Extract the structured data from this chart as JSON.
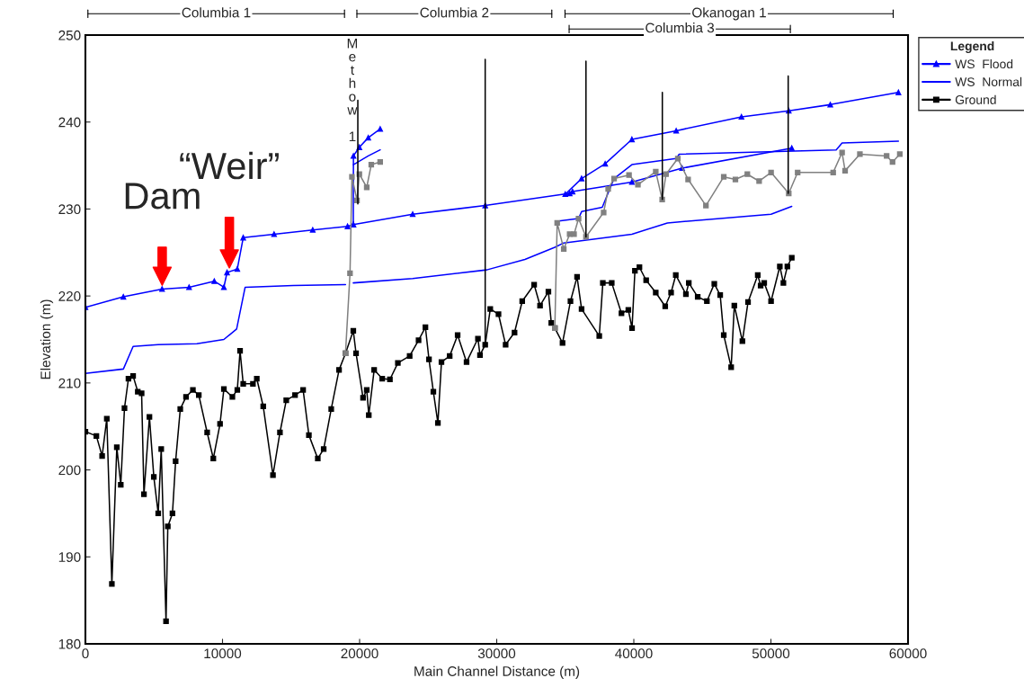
{
  "chart_data": {
    "type": "line",
    "xlabel": "Main Channel Distance (m)",
    "ylabel": "Elevation (m)",
    "legend_title": "Legend",
    "legend": "right",
    "grid": false,
    "xlim": [
      0,
      60000
    ],
    "xticks": [
      0,
      10000,
      20000,
      30000,
      40000,
      50000,
      60000
    ],
    "ylim": [
      180,
      250
    ],
    "yticks": [
      180,
      190,
      200,
      210,
      220,
      230,
      240,
      250
    ],
    "series": [
      {
        "name": "WS  Flood",
        "color": "#0000ff",
        "marker": "triangle",
        "x": [
          0,
          2770,
          5590,
          7560,
          9400,
          10100,
          10330,
          11080,
          11510,
          13760,
          16580,
          19120,
          19540,
          23870,
          29160,
          35320,
          35530,
          39860,
          43520,
          51520,
          null,
          19540,
          19550,
          19980,
          20630,
          21500,
          null,
          35000,
          36190,
          37910,
          39860,
          43090,
          47850,
          51300,
          54330,
          59300
        ],
        "values": [
          218.7,
          219.9,
          220.8,
          221.0,
          221.7,
          221.0,
          222.7,
          223.1,
          226.7,
          227.1,
          227.6,
          228.0,
          228.2,
          229.4,
          230.4,
          231.8,
          232.0,
          233.1,
          234.7,
          237.0,
          null,
          228.2,
          236.1,
          237.1,
          238.2,
          239.2,
          null,
          231.7,
          233.5,
          235.2,
          238.0,
          239.0,
          240.6,
          241.3,
          242.0,
          243.4
        ]
      },
      {
        "name": "WS  Normal",
        "color": "#0000ff",
        "marker": "none",
        "x": [
          0,
          2770,
          3480,
          5310,
          8130,
          10100,
          11030,
          11650,
          15170,
          18970,
          null,
          19540,
          23870,
          29270,
          32060,
          34240,
          34890,
          39860,
          42450,
          50010,
          51520,
          null,
          19550,
          20630,
          21500,
          null,
          34410,
          35970,
          36190,
          37700,
          38560,
          39860,
          43090,
          43310,
          54760,
          55190,
          59300
        ],
        "values": [
          211.1,
          211.6,
          214.2,
          214.4,
          214.5,
          215.0,
          216.2,
          221.0,
          221.2,
          221.3,
          null,
          221.5,
          222.0,
          223.0,
          224.2,
          225.6,
          226.1,
          227.1,
          228.4,
          229.4,
          230.3,
          null,
          235.1,
          236.1,
          236.8,
          null,
          228.6,
          228.9,
          229.7,
          230.2,
          233.5,
          235.1,
          235.8,
          236.3,
          236.8,
          237.6,
          237.8
        ]
      },
      {
        "name": "Ground",
        "color": "#000000",
        "marker": "square",
        "x": [
          0,
          800,
          1220,
          1560,
          1930,
          2290,
          2580,
          2850,
          3140,
          3480,
          3820,
          4100,
          4270,
          4670,
          4990,
          5310,
          5530,
          5880,
          6010,
          6350,
          6580,
          6920,
          7340,
          7840,
          8270,
          8880,
          9330,
          9820,
          10100,
          10720,
          11080,
          11280,
          11510,
          12220,
          12500,
          12970,
          13680,
          14190,
          14650,
          15290,
          15880,
          16300,
          16950,
          17380,
          17930,
          18500,
          18970,
          19540,
          19740,
          20250,
          20520,
          20670,
          21060,
          21650,
          22210,
          22790,
          23650,
          24300,
          24800,
          25060,
          25380,
          25710,
          25970,
          26570,
          27150,
          27800,
          28630,
          28780,
          29160,
          29530,
          30130,
          30650,
          31300,
          31860,
          32730,
          33160,
          33770,
          33980,
          34240,
          34800,
          35380,
          35860,
          36190,
          37480,
          37740,
          38390,
          39100,
          39600,
          39870,
          40080,
          40410,
          40900,
          41600,
          42290,
          42720,
          43060,
          43800,
          44010,
          44660,
          45330,
          45870,
          46300,
          46560,
          47100,
          47330,
          47920,
          48330,
          49040,
          49250,
          49510,
          50010,
          50650,
          50910,
          51200,
          51520
        ],
        "values": [
          204.4,
          203.9,
          201.6,
          205.9,
          186.9,
          202.6,
          198.3,
          207.1,
          210.5,
          210.8,
          209.0,
          208.8,
          197.2,
          206.1,
          199.2,
          195.0,
          202.4,
          182.6,
          193.5,
          195.0,
          201.0,
          207.0,
          208.4,
          209.2,
          208.6,
          204.3,
          201.3,
          205.3,
          209.3,
          208.4,
          209.2,
          213.7,
          209.9,
          209.9,
          210.5,
          207.3,
          199.4,
          204.3,
          208.0,
          208.6,
          209.2,
          204.0,
          201.3,
          202.4,
          207.0,
          211.5,
          213.4,
          216.0,
          213.4,
          208.3,
          209.2,
          206.3,
          211.5,
          210.5,
          210.4,
          212.3,
          213.1,
          214.9,
          216.4,
          212.7,
          209.0,
          205.4,
          212.4,
          213.1,
          215.5,
          212.4,
          215.1,
          213.2,
          214.4,
          218.5,
          217.9,
          214.4,
          215.8,
          219.4,
          221.3,
          218.9,
          220.5,
          216.9,
          216.3,
          214.6,
          219.4,
          222.2,
          218.5,
          215.4,
          221.5,
          221.5,
          218.0,
          218.4,
          216.3,
          222.9,
          223.3,
          221.8,
          220.4,
          218.8,
          220.4,
          222.4,
          220.2,
          221.5,
          219.9,
          219.4,
          221.4,
          220.1,
          215.5,
          211.8,
          218.9,
          214.8,
          219.3,
          222.4,
          221.2,
          221.5,
          219.4,
          223.4,
          221.5,
          223.4,
          224.4
        ]
      },
      {
        "color": "#808080",
        "marker": "square",
        "x": [
          18970,
          19300,
          19440,
          19810,
          19980,
          20520,
          20850,
          21500,
          null,
          34240,
          34410,
          34890,
          35320,
          35640,
          35970,
          36510,
          37800,
          38130,
          38560,
          39650,
          40300,
          41600,
          42070,
          42350,
          43210,
          43960,
          45260,
          46560,
          47410,
          48280,
          49140,
          50010,
          51300,
          51950,
          54540,
          55190,
          55410,
          56490,
          58440,
          58870,
          59400
        ],
        "values": [
          213.4,
          222.6,
          233.7,
          231.0,
          234.0,
          232.5,
          235.1,
          235.4,
          null,
          216.3,
          228.4,
          225.4,
          227.1,
          227.1,
          228.9,
          226.8,
          229.6,
          232.3,
          233.5,
          233.9,
          232.8,
          234.3,
          231.1,
          234.0,
          235.8,
          233.4,
          230.4,
          233.7,
          233.4,
          234.0,
          233.2,
          234.2,
          231.8,
          234.2,
          234.2,
          236.5,
          234.4,
          236.3,
          236.1,
          235.4,
          236.3
        ]
      },
      {
        "color": "#000000",
        "marker": "none",
        "x": [
          19870,
          19870,
          null,
          29160,
          29160,
          null,
          36510,
          36510,
          null,
          42080,
          42080,
          null,
          51260,
          51260
        ],
        "values": [
          242.5,
          230.6,
          null,
          247.2,
          214.4,
          null,
          247.0,
          226.8,
          null,
          243.4,
          231.1,
          null,
          245.3,
          231.8
        ]
      }
    ],
    "annotations": [
      {
        "text": "Dam",
        "x": 5600,
        "y": 220.8
      },
      {
        "text": "“Weir”",
        "x": 10500,
        "y": 222.8
      },
      "Columbia 1",
      "Columbia 2",
      "Okanogan 1",
      "Columbia 3",
      "Methow 1"
    ]
  }
}
